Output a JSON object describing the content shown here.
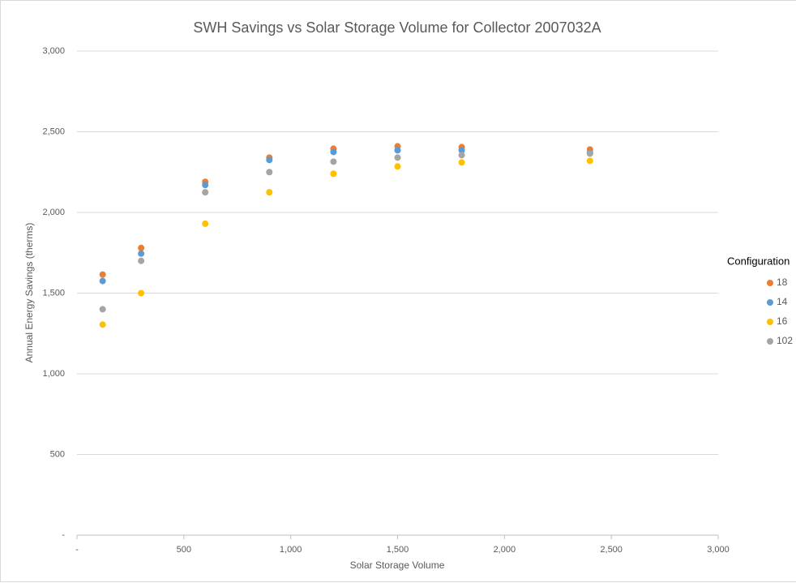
{
  "chart_data": {
    "type": "scatter",
    "title": "SWH Savings vs Solar Storage Volume for Collector 2007032A",
    "x_label": "Solar Storage Volume",
    "y_label": "Annual Energy Savings (therms)",
    "x": [
      120,
      300,
      600,
      900,
      1200,
      1500,
      1800,
      2400
    ],
    "series": [
      {
        "name": "18",
        "color": "#ED7D31",
        "values": [
          1615,
          1780,
          2190,
          2340,
          2395,
          2410,
          2405,
          2390
        ]
      },
      {
        "name": "14",
        "color": "#5B9BD5",
        "values": [
          1575,
          1745,
          2170,
          2325,
          2375,
          2385,
          2385,
          2370
        ]
      },
      {
        "name": "16",
        "color": "#FFC000",
        "values": [
          1305,
          1500,
          1930,
          2125,
          2240,
          2285,
          2310,
          2320
        ]
      },
      {
        "name": "102",
        "color": "#A5A5A5",
        "values": [
          1400,
          1700,
          2125,
          2250,
          2315,
          2340,
          2355,
          2365
        ]
      }
    ],
    "legend_title": "Configuration",
    "legend_position": "right",
    "grid": true,
    "xlim": [
      0,
      3000
    ],
    "ylim": [
      0,
      3000
    ],
    "xticks": [
      {
        "value": 0,
        "label": "-"
      },
      500,
      {
        "value": 1000,
        "label": "1,000"
      },
      {
        "value": 1500,
        "label": "1,500"
      },
      {
        "value": 2000,
        "label": "2,000"
      },
      {
        "value": 2500,
        "label": "2,500"
      },
      {
        "value": 3000,
        "label": "3,000"
      }
    ],
    "yticks": [
      {
        "value": 0,
        "label": "-"
      },
      500,
      {
        "value": 1000,
        "label": "1,000"
      },
      {
        "value": 1500,
        "label": "1,500"
      },
      {
        "value": 2000,
        "label": "2,000"
      },
      {
        "value": 2500,
        "label": "2,500"
      },
      {
        "value": 3000,
        "label": "3,000"
      }
    ]
  }
}
